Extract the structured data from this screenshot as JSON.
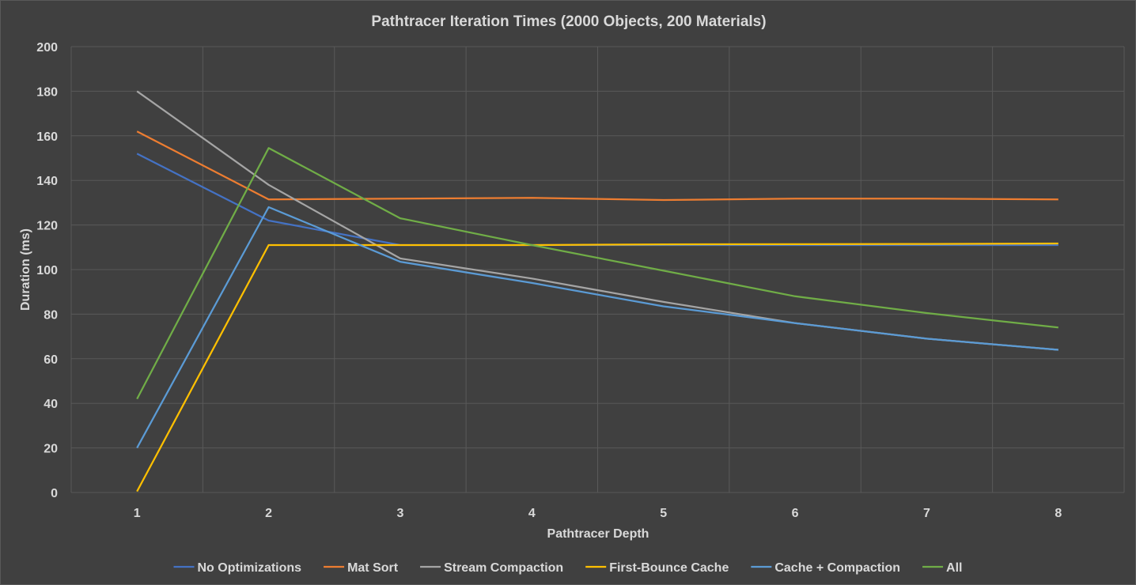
{
  "chart_data": {
    "type": "line",
    "title": "Pathtracer Iteration Times (2000 Objects, 200 Materials)",
    "xlabel": "Pathtracer Depth",
    "ylabel": "Duration (ms)",
    "categories": [
      "1",
      "2",
      "3",
      "4",
      "5",
      "6",
      "7",
      "8"
    ],
    "ylim": [
      0,
      200
    ],
    "yticks": [
      0,
      20,
      40,
      60,
      80,
      100,
      120,
      140,
      160,
      180,
      200
    ],
    "grid": true,
    "legend_position": "bottom",
    "series": [
      {
        "name": "No Optimizations",
        "color": "#4472c4",
        "values": [
          152,
          122,
          111,
          111,
          111,
          111,
          111,
          111
        ]
      },
      {
        "name": "Mat Sort",
        "color": "#ed7d31",
        "values": [
          162,
          131.5,
          131.8,
          132.2,
          131.2,
          131.8,
          131.8,
          131.5
        ]
      },
      {
        "name": "Stream Compaction",
        "color": "#a5a5a5",
        "values": [
          180,
          138,
          105,
          96,
          85.5,
          76,
          69,
          64
        ]
      },
      {
        "name": "First-Bounce Cache",
        "color": "#ffc000",
        "values": [
          0.5,
          111,
          111,
          111,
          111.3,
          111.4,
          111.5,
          111.7
        ]
      },
      {
        "name": "Cache + Compaction",
        "color": "#5b9bd5",
        "values": [
          20,
          128,
          103.5,
          94,
          83.5,
          76,
          69,
          64
        ]
      },
      {
        "name": "All",
        "color": "#70ad47",
        "values": [
          42,
          154.5,
          123,
          111,
          99.5,
          88,
          80.5,
          74
        ]
      }
    ]
  }
}
